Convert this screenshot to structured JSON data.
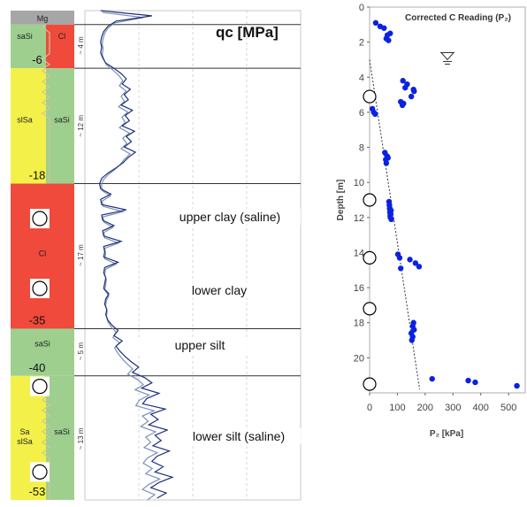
{
  "chart_data": [
    {
      "type": "line",
      "title": "qc [MPa]",
      "soil_column": [
        {
          "code": "Mg",
          "depth_top_m": 0.0,
          "depth_bottom_m": 0.8,
          "colors": [
            "#a6a6a6"
          ]
        },
        {
          "code": "saSi / Cl",
          "labels": [
            "saSi",
            "Cl"
          ],
          "value": "-6",
          "depth_top_m": 0.8,
          "depth_bottom_m": 3.3,
          "colors": [
            "#9ecf8e",
            "#ef4a3c"
          ]
        },
        {
          "code": "slSa / saSi",
          "labels": [
            "slSa",
            "saSi"
          ],
          "value": "-18",
          "depth_top_m": 3.3,
          "depth_bottom_m": 9.9,
          "colors": [
            "#f3f04a",
            "#9ecf8e"
          ]
        },
        {
          "code": "Cl",
          "labels": [
            "Cl"
          ],
          "value": "-35",
          "depth_top_m": 9.9,
          "depth_bottom_m": 18.2,
          "colors": [
            "#ef4a3c"
          ]
        },
        {
          "code": "saSi",
          "labels": [
            "saSi"
          ],
          "value": "-40",
          "depth_top_m": 18.2,
          "depth_bottom_m": 20.9,
          "colors": [
            "#9ecf8e"
          ]
        },
        {
          "code": "Sa slSa / saSi",
          "labels": [
            "Sa\nslSa",
            "saSi"
          ],
          "value": "-53",
          "depth_top_m": 20.9,
          "depth_bottom_m": 28.0,
          "colors": [
            "#f3f04a",
            "#9ecf8e"
          ]
        }
      ],
      "layer_thickness_labels": [
        "~ 4 m",
        "~ 12 m",
        "~ 17 m",
        "~ 5 m",
        "~ 13 m"
      ],
      "layer_annotations": [
        "upper clay (saline)",
        "lower clay",
        "upper silt",
        "lower silt (saline)"
      ],
      "test_markers_depth_m": [
        11.9,
        15.9,
        21.5,
        26.4
      ],
      "qc_profile": {
        "depth_m": [
          0.0,
          0.3,
          0.6,
          0.9,
          1.2,
          1.5,
          1.8,
          2.1,
          2.4,
          2.7,
          3.0,
          3.3,
          3.6,
          3.9,
          4.2,
          4.5,
          4.8,
          5.1,
          5.4,
          5.7,
          6.0,
          6.3,
          6.6,
          6.9,
          7.2,
          7.5,
          7.8,
          8.1,
          8.4,
          8.7,
          9.0,
          9.3,
          9.6,
          9.9,
          10.2,
          10.5,
          10.8,
          11.1,
          11.4,
          11.7,
          12.0,
          12.3,
          12.6,
          12.9,
          13.2,
          13.5,
          13.8,
          14.1,
          14.4,
          14.7,
          15.0,
          15.3,
          15.6,
          15.9,
          16.2,
          16.5,
          16.8,
          17.1,
          17.4,
          17.7,
          18.0,
          18.3,
          18.6,
          18.9,
          19.2,
          19.5,
          19.8,
          20.1,
          20.4,
          20.7,
          21.0,
          21.3,
          21.6,
          21.9,
          22.2,
          22.5,
          22.8,
          23.1,
          23.4,
          23.7,
          24.0,
          24.3,
          24.6,
          24.9,
          25.2,
          25.5,
          25.8,
          26.1,
          26.4,
          26.7,
          27.0,
          27.3,
          27.6,
          27.9
        ],
        "qc": [
          0.5,
          5.5,
          2.0,
          1.2,
          0.8,
          0.6,
          0.5,
          0.6,
          0.5,
          0.7,
          1.0,
          1.8,
          2.5,
          3.0,
          2.6,
          3.4,
          2.8,
          3.2,
          2.5,
          3.6,
          2.9,
          3.3,
          2.6,
          3.8,
          3.0,
          3.5,
          2.8,
          3.9,
          3.2,
          2.7,
          2.0,
          1.2,
          0.6,
          0.4,
          0.5,
          1.5,
          0.5,
          0.6,
          3.0,
          0.6,
          0.7,
          1.8,
          0.7,
          0.8,
          2.5,
          0.8,
          0.9,
          0.8,
          2.2,
          0.9,
          0.8,
          1.0,
          0.9,
          0.8,
          1.3,
          1.0,
          0.9,
          1.1,
          1.0,
          1.2,
          1.6,
          2.2,
          1.8,
          2.6,
          2.0,
          2.4,
          2.9,
          3.5,
          4.2,
          3.6,
          4.8,
          5.5,
          4.5,
          6.2,
          5.0,
          4.6,
          6.8,
          5.4,
          6.1,
          5.2,
          7.0,
          5.8,
          6.4,
          5.6,
          7.2,
          6.0,
          5.5,
          6.6,
          5.8,
          7.5,
          6.2,
          5.4,
          6.9,
          6.0
        ]
      },
      "ylim_m": [
        0,
        28
      ],
      "xlim_qc": [
        0,
        20
      ]
    },
    {
      "type": "scatter",
      "title": "Corrected C Reading (P₂)",
      "xlabel": "P₂ [kPa]",
      "ylabel": "Depth [m]",
      "xlim": [
        0,
        560
      ],
      "ylim": [
        0,
        22
      ],
      "xticks": [
        "0",
        "100",
        "200",
        "300",
        "400",
        "500"
      ],
      "yticks": [
        "0",
        "2",
        "4",
        "6",
        "8",
        "10",
        "12",
        "14",
        "16",
        "18",
        "20"
      ],
      "series": [
        {
          "x": [
            22,
            38,
            52,
            60,
            64,
            68,
            74,
            120,
            128,
            135,
            150,
            158,
            160,
            112,
            118,
            122,
            10,
            15,
            20,
            55,
            58,
            60,
            63,
            66,
            70,
            71,
            72,
            73,
            74,
            75,
            76,
            77,
            78,
            102,
            108,
            112,
            145,
            165,
            178,
            158,
            160,
            155,
            152,
            150,
            155,
            225,
            355,
            380,
            530
          ],
          "y": [
            0.9,
            1.1,
            1.2,
            1.8,
            1.6,
            1.9,
            1.5,
            4.2,
            4.6,
            4.4,
            5.1,
            4.7,
            4.8,
            5.4,
            5.6,
            5.5,
            5.8,
            6.0,
            6.1,
            8.3,
            8.7,
            8.9,
            8.5,
            8.6,
            11.1,
            11.3,
            11.5,
            11.7,
            11.9,
            12.0,
            11.8,
            11.6,
            12.1,
            14.1,
            14.3,
            14.9,
            14.4,
            14.6,
            14.8,
            18.0,
            18.4,
            18.8,
            19.0,
            18.6,
            18.2,
            21.2,
            21.3,
            21.4,
            21.6
          ],
          "color": "#0a22e0"
        }
      ],
      "reference_line": {
        "x": [
          0,
          180
        ],
        "y": [
          3.0,
          21.8
        ]
      },
      "markers_depth_m": [
        5.1,
        11.0,
        14.3,
        17.2,
        21.5
      ],
      "water_table_depth_m": 2.9,
      "water_table_x": 280
    }
  ]
}
